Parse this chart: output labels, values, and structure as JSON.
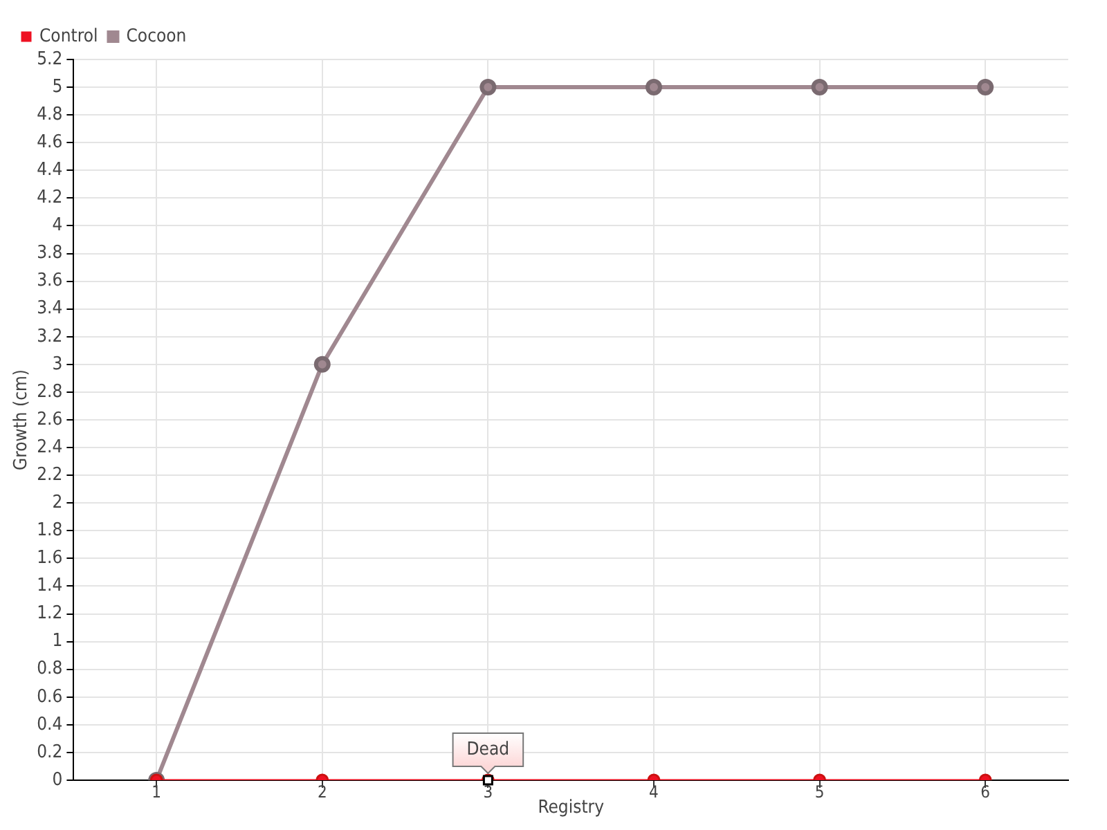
{
  "chart_data": {
    "type": "line",
    "xlabel": "Registry",
    "ylabel": "Growth (cm)",
    "categories": [
      "1",
      "2",
      "3",
      "4",
      "5",
      "6"
    ],
    "series": [
      {
        "name": "Cocoon",
        "color": "#a08890",
        "values": [
          0,
          3,
          5,
          5,
          5,
          5
        ]
      },
      {
        "name": "Control",
        "color": "#ee1122",
        "values": [
          0,
          0,
          0,
          0,
          0,
          0
        ]
      }
    ],
    "ylim": [
      0,
      5.2
    ],
    "yticks": [
      0,
      0.2,
      0.4,
      0.6,
      0.8,
      1,
      1.2,
      1.4,
      1.6,
      1.8,
      2,
      2.2,
      2.4,
      2.6,
      2.8,
      3,
      3.2,
      3.4,
      3.6,
      3.8,
      4,
      4.2,
      4.4,
      4.6,
      4.8,
      5,
      5.2
    ],
    "grid": true,
    "legend": "top left",
    "marker": "circle",
    "line_style": "solid",
    "annotations": [
      {
        "text": "Dead",
        "x": "3",
        "y": 0
      }
    ]
  }
}
